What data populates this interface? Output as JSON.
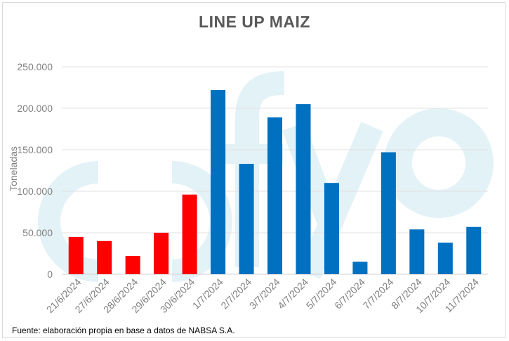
{
  "chart_data": {
    "type": "bar",
    "title": "LINE UP MAIZ",
    "ylabel": "Toneladas",
    "xlabel": "",
    "ylim": [
      0,
      250000
    ],
    "yticks": [
      "0",
      "50.000",
      "100.000",
      "150.000",
      "200.000",
      "250.000"
    ],
    "ytick_values": [
      0,
      50000,
      100000,
      150000,
      200000,
      250000
    ],
    "grid": true,
    "categories": [
      "21/6/2024",
      "27/6/2024",
      "28/6/2024",
      "29/6/2024",
      "30/6/2024",
      "1/7/2024",
      "2/7/2024",
      "3/7/2024",
      "4/7/2024",
      "5/7/2024",
      "6/7/2024",
      "7/7/2024",
      "8/7/2024",
      "10/7/2024",
      "11/7/2024"
    ],
    "values": [
      45000,
      40000,
      22000,
      50000,
      96000,
      222000,
      133000,
      189000,
      205000,
      110000,
      15000,
      147000,
      54000,
      38000,
      57000
    ],
    "bar_colors": [
      "#ff0000",
      "#ff0000",
      "#ff0000",
      "#ff0000",
      "#ff0000",
      "#0070c0",
      "#0070c0",
      "#0070c0",
      "#0070c0",
      "#0070c0",
      "#0070c0",
      "#0070c0",
      "#0070c0",
      "#0070c0",
      "#0070c0"
    ]
  },
  "source_note": "Fuente: elaboración propia en base a datos de NABSA S.A.",
  "watermark": {
    "logo": "fyo",
    "color": "#e3f2f7"
  }
}
